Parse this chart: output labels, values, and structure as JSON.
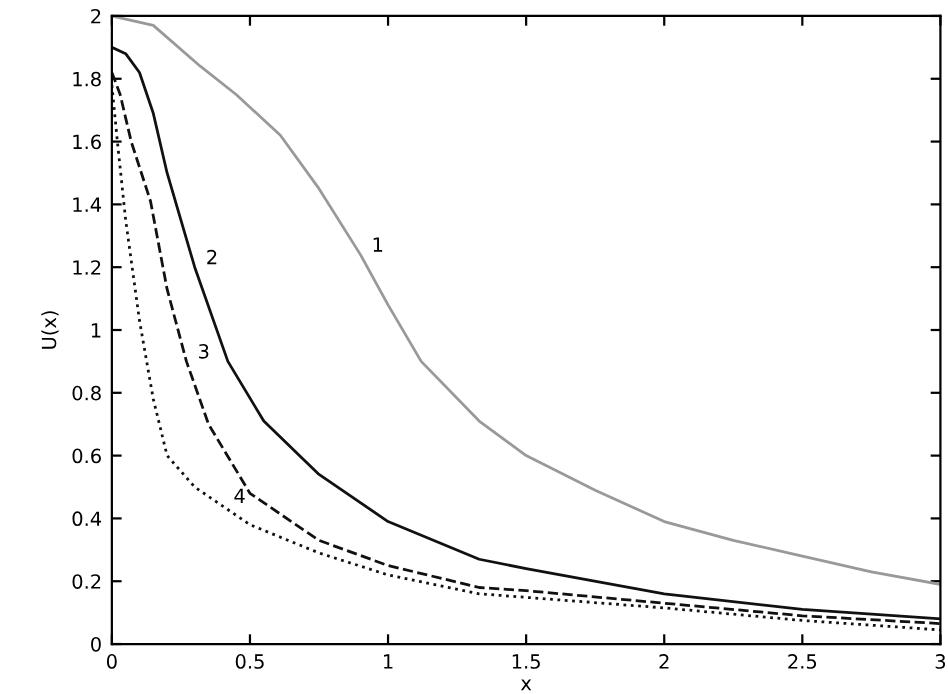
{
  "chart_data": {
    "type": "line",
    "xlabel": "x",
    "ylabel": "U(x)",
    "xlim": [
      0,
      3
    ],
    "ylim": [
      0,
      2
    ],
    "xticks": [
      0,
      0.5,
      1,
      1.5,
      2,
      2.5,
      3
    ],
    "yticks": [
      0,
      0.2,
      0.4,
      0.6,
      0.8,
      1,
      1.2,
      1.4,
      1.6,
      1.8,
      2
    ],
    "grid": false,
    "legend": false,
    "series": [
      {
        "color": "#999999",
        "line_style": "solid",
        "x": [
          0,
          0.15,
          0.32,
          0.45,
          0.61,
          0.75,
          0.9,
          1,
          1.12,
          1.33,
          1.5,
          1.75,
          2,
          2.25,
          2.5,
          2.75,
          3
        ],
        "values": [
          2,
          1.97,
          1.84,
          1.75,
          1.62,
          1.45,
          1.24,
          1.08,
          0.9,
          0.71,
          0.6,
          0.49,
          0.39,
          0.33,
          0.28,
          0.23,
          0.19
        ]
      },
      {
        "color": "#111111",
        "line_style": "solid",
        "x": [
          0,
          0.05,
          0.1,
          0.15,
          0.2,
          0.3,
          0.42,
          0.55,
          0.75,
          1,
          1.33,
          1.5,
          2,
          2.5,
          3
        ],
        "values": [
          1.9,
          1.88,
          1.82,
          1.69,
          1.5,
          1.2,
          0.9,
          0.71,
          0.54,
          0.39,
          0.27,
          0.24,
          0.16,
          0.11,
          0.08
        ]
      },
      {
        "color": "#111111",
        "line_style": "dashed",
        "x": [
          0,
          0.03,
          0.07,
          0.14,
          0.2,
          0.27,
          0.35,
          0.5,
          0.75,
          1,
          1.33,
          1.5,
          2,
          2.5,
          3
        ],
        "values": [
          1.82,
          1.75,
          1.6,
          1.41,
          1.13,
          0.9,
          0.7,
          0.48,
          0.33,
          0.25,
          0.18,
          0.17,
          0.13,
          0.09,
          0.065
        ]
      },
      {
        "color": "#111111",
        "line_style": "dotted",
        "x": [
          0,
          0.02,
          0.05,
          0.1,
          0.15,
          0.2,
          0.3,
          0.4,
          0.5,
          0.75,
          1,
          1.33,
          2,
          2.5,
          3
        ],
        "values": [
          1.78,
          1.6,
          1.35,
          1.03,
          0.78,
          0.6,
          0.5,
          0.44,
          0.38,
          0.29,
          0.22,
          0.16,
          0.115,
          0.075,
          0.045
        ]
      }
    ],
    "annotations": [
      {
        "text": "1",
        "x": 0.9,
        "y": 1.24
      },
      {
        "text": "2",
        "x": 0.3,
        "y": 1.2
      },
      {
        "text": "3",
        "x": 0.27,
        "y": 0.9
      },
      {
        "text": "4",
        "x": 0.4,
        "y": 0.44
      }
    ]
  }
}
